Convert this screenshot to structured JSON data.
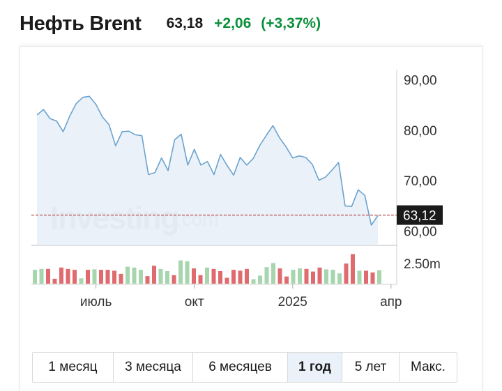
{
  "header": {
    "title": "Нефть Brent",
    "price": "63,18",
    "change": "+2,06",
    "change_pct": "(+3,37%)"
  },
  "colors": {
    "line": "#6aa3cf",
    "area": "#e8eff7",
    "up_volume": "#a6d5ae",
    "down_volume": "#e06b6e",
    "positive": "#0a8f3a",
    "marker": "#b54a4a",
    "label_bg": "#1a1a1a"
  },
  "watermark": "Investing.com",
  "chart_data": {
    "type": "line",
    "y_ticks": [
      "90,00",
      "80,00",
      "70,00",
      "60,00"
    ],
    "ylim": [
      57.2,
      92.8
    ],
    "x_ticks": [
      {
        "label": "июль",
        "index": 9
      },
      {
        "label": "окт",
        "index": 24
      },
      {
        "label": "2025",
        "index": 39
      },
      {
        "label": "апр",
        "index": 54
      }
    ],
    "current_label": "63,12",
    "current_value": 63.12,
    "volume_tick": "2.50m",
    "volume_max": 3.5,
    "price": [
      83.0,
      84.1,
      82.3,
      81.8,
      79.7,
      82.8,
      85.3,
      86.5,
      86.7,
      85.1,
      82.6,
      81.1,
      76.9,
      79.7,
      79.8,
      79.1,
      78.9,
      71.2,
      71.6,
      74.5,
      72.0,
      78.1,
      79.2,
      73.1,
      76.2,
      73.1,
      73.8,
      71.2,
      75.2,
      73.0,
      71.1,
      74.6,
      73.1,
      74.4,
      77.0,
      79.0,
      80.9,
      78.5,
      76.7,
      74.5,
      74.9,
      74.6,
      73.2,
      70.1,
      70.7,
      72.1,
      73.6,
      65.0,
      64.9,
      68.2,
      67.1,
      61.2,
      63.1
    ],
    "volume": [
      {
        "v": 1.55,
        "up": true
      },
      {
        "v": 1.65,
        "up": true
      },
      {
        "v": 1.65,
        "up": false
      },
      {
        "v": 0.55,
        "up": false
      },
      {
        "v": 1.8,
        "up": false
      },
      {
        "v": 1.65,
        "up": false
      },
      {
        "v": 1.55,
        "up": false
      },
      {
        "v": 0.6,
        "up": true
      },
      {
        "v": 1.55,
        "up": false
      },
      {
        "v": 1.6,
        "up": true
      },
      {
        "v": 1.55,
        "up": false
      },
      {
        "v": 1.55,
        "up": false
      },
      {
        "v": 1.45,
        "up": false
      },
      {
        "v": 1.1,
        "up": false
      },
      {
        "v": 1.9,
        "up": true
      },
      {
        "v": 1.8,
        "up": true
      },
      {
        "v": 1.55,
        "up": true
      },
      {
        "v": 0.85,
        "up": false
      },
      {
        "v": 2.0,
        "up": false
      },
      {
        "v": 1.65,
        "up": true
      },
      {
        "v": 1.4,
        "up": true
      },
      {
        "v": 0.95,
        "up": false
      },
      {
        "v": 2.6,
        "up": true
      },
      {
        "v": 2.5,
        "up": true
      },
      {
        "v": 1.7,
        "up": false
      },
      {
        "v": 0.95,
        "up": false
      },
      {
        "v": 1.8,
        "up": true
      },
      {
        "v": 1.65,
        "up": false
      },
      {
        "v": 1.4,
        "up": false
      },
      {
        "v": 0.65,
        "up": false
      },
      {
        "v": 1.55,
        "up": false
      },
      {
        "v": 1.45,
        "up": false
      },
      {
        "v": 1.65,
        "up": false
      },
      {
        "v": 0.5,
        "up": true
      },
      {
        "v": 0.9,
        "up": true
      },
      {
        "v": 1.85,
        "up": true
      },
      {
        "v": 2.3,
        "up": true
      },
      {
        "v": 1.7,
        "up": false
      },
      {
        "v": 0.8,
        "up": false
      },
      {
        "v": 1.55,
        "up": true
      },
      {
        "v": 1.7,
        "up": true
      },
      {
        "v": 1.65,
        "up": false
      },
      {
        "v": 1.35,
        "up": false
      },
      {
        "v": 1.8,
        "up": false
      },
      {
        "v": 1.6,
        "up": true
      },
      {
        "v": 1.55,
        "up": true
      },
      {
        "v": 1.15,
        "up": true
      },
      {
        "v": 2.25,
        "up": false
      },
      {
        "v": 3.3,
        "up": false
      },
      {
        "v": 1.45,
        "up": true
      },
      {
        "v": 1.45,
        "up": false
      },
      {
        "v": 1.25,
        "up": false
      },
      {
        "v": 1.5,
        "up": true
      }
    ]
  },
  "tabs": [
    {
      "label": "1 месяц",
      "active": false
    },
    {
      "label": "3 месяца",
      "active": false
    },
    {
      "label": "6 месяцев",
      "active": false
    },
    {
      "label": "1 год",
      "active": true
    },
    {
      "label": "5 лет",
      "active": false
    },
    {
      "label": "Макс.",
      "active": false
    }
  ]
}
